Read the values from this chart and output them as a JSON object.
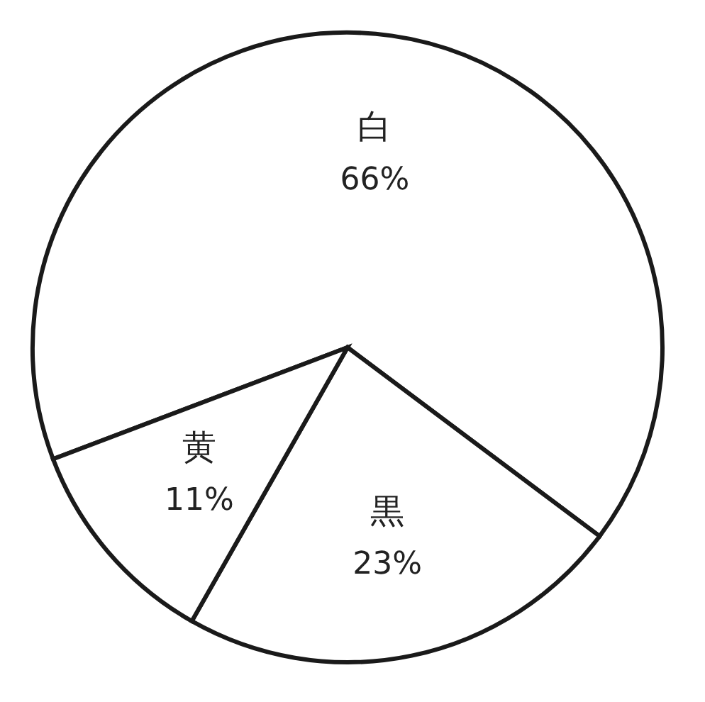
{
  "chart_data": {
    "type": "pie",
    "categories": [
      "白",
      "黒",
      "黄"
    ],
    "values": [
      66,
      23,
      11
    ],
    "colors": [
      "#ffffff",
      "#ffffff",
      "#ffffff"
    ],
    "value_labels": [
      "66%",
      "23%",
      "11%"
    ]
  }
}
